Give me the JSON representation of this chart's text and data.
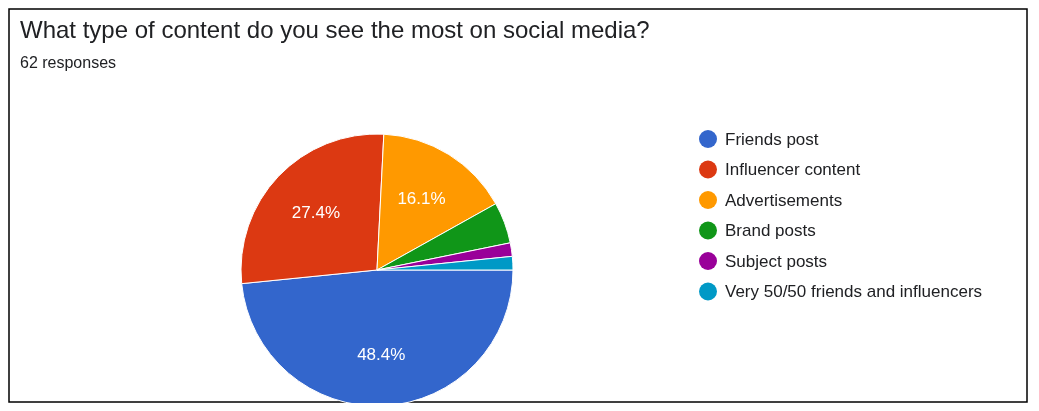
{
  "chart_data": {
    "type": "pie",
    "title": "What type of content do you see the most on social media?",
    "subtitle": "62 responses",
    "categories": [
      "Friends post",
      "Influencer content",
      "Advertisements",
      "Brand posts",
      "Subject posts",
      "Very 50/50 friends and influencers"
    ],
    "values": [
      48.4,
      27.4,
      16.1,
      4.9,
      1.6,
      1.6
    ],
    "colors": [
      "#3366cc",
      "#dc3912",
      "#ff9900",
      "#109618",
      "#990099",
      "#0099c6"
    ],
    "value_labels": [
      "48.4%",
      "27.4%",
      "16.1%",
      null,
      null,
      null
    ],
    "legend": "right"
  }
}
